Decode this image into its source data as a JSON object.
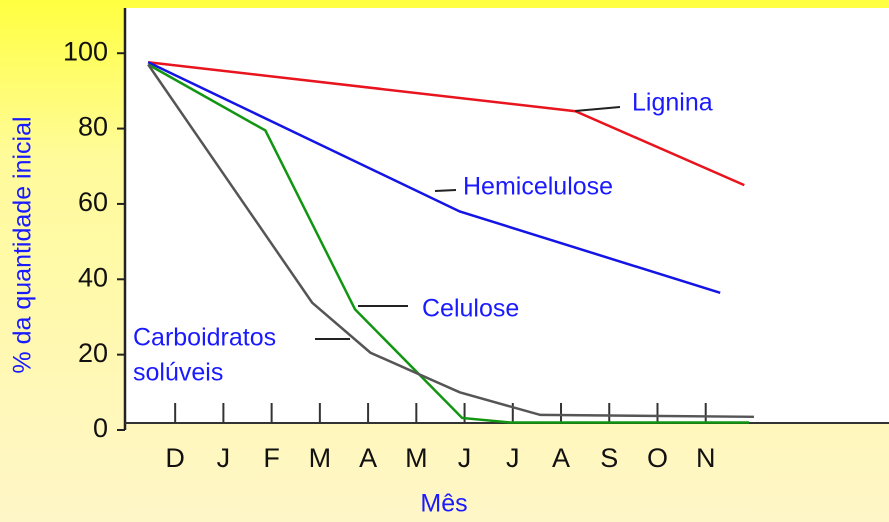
{
  "chart_data": {
    "type": "line",
    "ylabel": "% da quantidade inicial",
    "xlabel": "Mês",
    "xlim": [
      -1.04,
      14.8
    ],
    "xticks": [
      {
        "value": 0,
        "label": "D"
      },
      {
        "value": 1,
        "label": "J"
      },
      {
        "value": 2,
        "label": "F"
      },
      {
        "value": 3,
        "label": "M"
      },
      {
        "value": 4,
        "label": "A"
      },
      {
        "value": 5,
        "label": "M"
      },
      {
        "value": 6,
        "label": "J"
      },
      {
        "value": 7,
        "label": "J"
      },
      {
        "value": 8,
        "label": "A"
      },
      {
        "value": 9,
        "label": "S"
      },
      {
        "value": 10,
        "label": "O"
      },
      {
        "value": 11,
        "label": "N"
      }
    ],
    "ylim": [
      0,
      112
    ],
    "yticks": [
      0,
      20,
      40,
      60,
      80,
      100
    ],
    "series": [
      {
        "color": "#e8141e",
        "x": [
          -0.56,
          8.3,
          11.8
        ],
        "values": [
          97.6,
          84.6,
          65
        ]
      },
      {
        "color": "#1414e6",
        "x": [
          -0.56,
          5.9,
          11.3
        ],
        "values": [
          97.6,
          58,
          36.4
        ]
      },
      {
        "color": "#129612",
        "x": [
          -0.56,
          1.87,
          3.73,
          5.95,
          6.95,
          11.9
        ],
        "values": [
          97,
          79.5,
          32,
          3.2,
          2,
          2
        ]
      },
      {
        "color": "#555555",
        "x": [
          -0.56,
          2.84,
          4.05,
          5.9,
          7.57,
          12.0
        ],
        "values": [
          97,
          33.8,
          20.5,
          10,
          4,
          3.5
        ]
      }
    ],
    "annotations": [
      "Lignina",
      "Hemicelulose",
      "Celulose",
      "Carboidratos",
      "solúveis"
    ]
  }
}
